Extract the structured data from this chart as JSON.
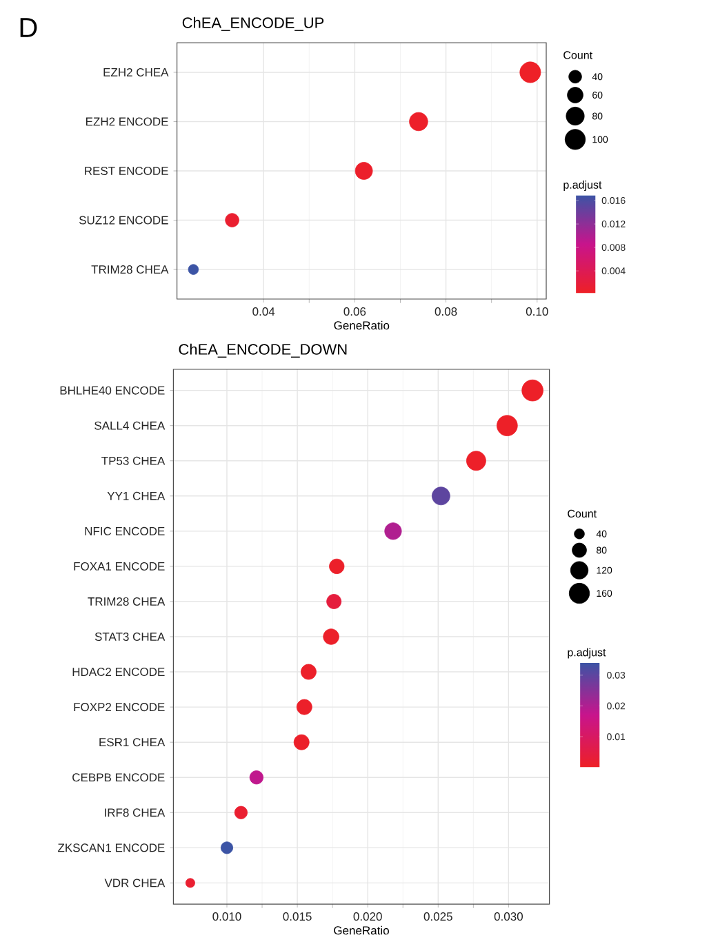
{
  "chart_data": [
    {
      "type": "bubble",
      "title": "ChEA_ENCODE_UP",
      "orientation": "horizontal",
      "marker": "circle",
      "grid": true,
      "categories": [
        "EZH2 CHEA",
        "EZH2 ENCODE",
        "REST ENCODE",
        "SUZ12 ENCODE",
        "TRIM28 CHEA"
      ],
      "values": [
        0.0985,
        0.074,
        0.062,
        0.0331,
        0.0246
      ],
      "sizes": [
        105,
        82,
        72,
        45,
        25
      ],
      "cvalues": [
        0.0003,
        0.0005,
        0.0006,
        0.001,
        0.0169
      ],
      "size_legend": [
        40,
        60,
        80,
        100
      ],
      "legend_title": "Count",
      "clabel": "p.adjust",
      "clim": [
        0.0002,
        0.0169
      ],
      "cticks": [
        0.004,
        0.008,
        0.012,
        0.016
      ],
      "xlabel": "GeneRatio",
      "xlim": [
        0.021,
        0.102
      ],
      "xticks": [
        0.04,
        0.06,
        0.08,
        {
          "value": 0.1,
          "label": "0.10"
        }
      ],
      "annotations": [
        "D"
      ]
    },
    {
      "type": "bubble",
      "title": "ChEA_ENCODE_DOWN",
      "orientation": "horizontal",
      "marker": "circle",
      "grid": true,
      "categories": [
        "BHLHE40 ENCODE",
        "SALL4 CHEA",
        "TP53 CHEA",
        "YY1 CHEA",
        "NFIC ENCODE",
        "FOXA1 ENCODE",
        "TRIM28 CHEA",
        "STAT3 CHEA",
        "HDAC2 ENCODE",
        "FOXP2 ENCODE",
        "ESR1 CHEA",
        "CEBPB ENCODE",
        "IRF8 CHEA",
        "ZKSCAN1 ENCODE",
        "VDR CHEA"
      ],
      "values": [
        0.0317,
        0.0299,
        0.0277,
        0.0252,
        0.0218,
        0.0178,
        0.0176,
        0.0174,
        0.0158,
        0.0155,
        0.0153,
        0.0121,
        0.011,
        0.01,
        0.0074
      ],
      "sizes": [
        175,
        165,
        145,
        125,
        110,
        85,
        82,
        95,
        90,
        90,
        90,
        70,
        62,
        55,
        32
      ],
      "cvalues": [
        0.0005,
        0.0005,
        0.0006,
        0.03,
        0.02,
        0.0008,
        0.004,
        0.0008,
        0.0008,
        0.0008,
        0.0008,
        0.018,
        0.002,
        0.034,
        0.002
      ],
      "size_legend": [
        40,
        80,
        120,
        160
      ],
      "legend_title": "Count",
      "clabel": "p.adjust",
      "clim": [
        0.0001,
        0.034
      ],
      "cticks": [
        0.01,
        0.02,
        0.03
      ],
      "xlabel": "GeneRatio",
      "xlim": [
        0.0062,
        0.0329
      ],
      "xticks": [
        {
          "value": 0.01,
          "label": "0.010"
        },
        0.015,
        {
          "value": 0.02,
          "label": "0.020"
        },
        0.025,
        {
          "value": 0.03,
          "label": "0.030"
        }
      ]
    }
  ]
}
